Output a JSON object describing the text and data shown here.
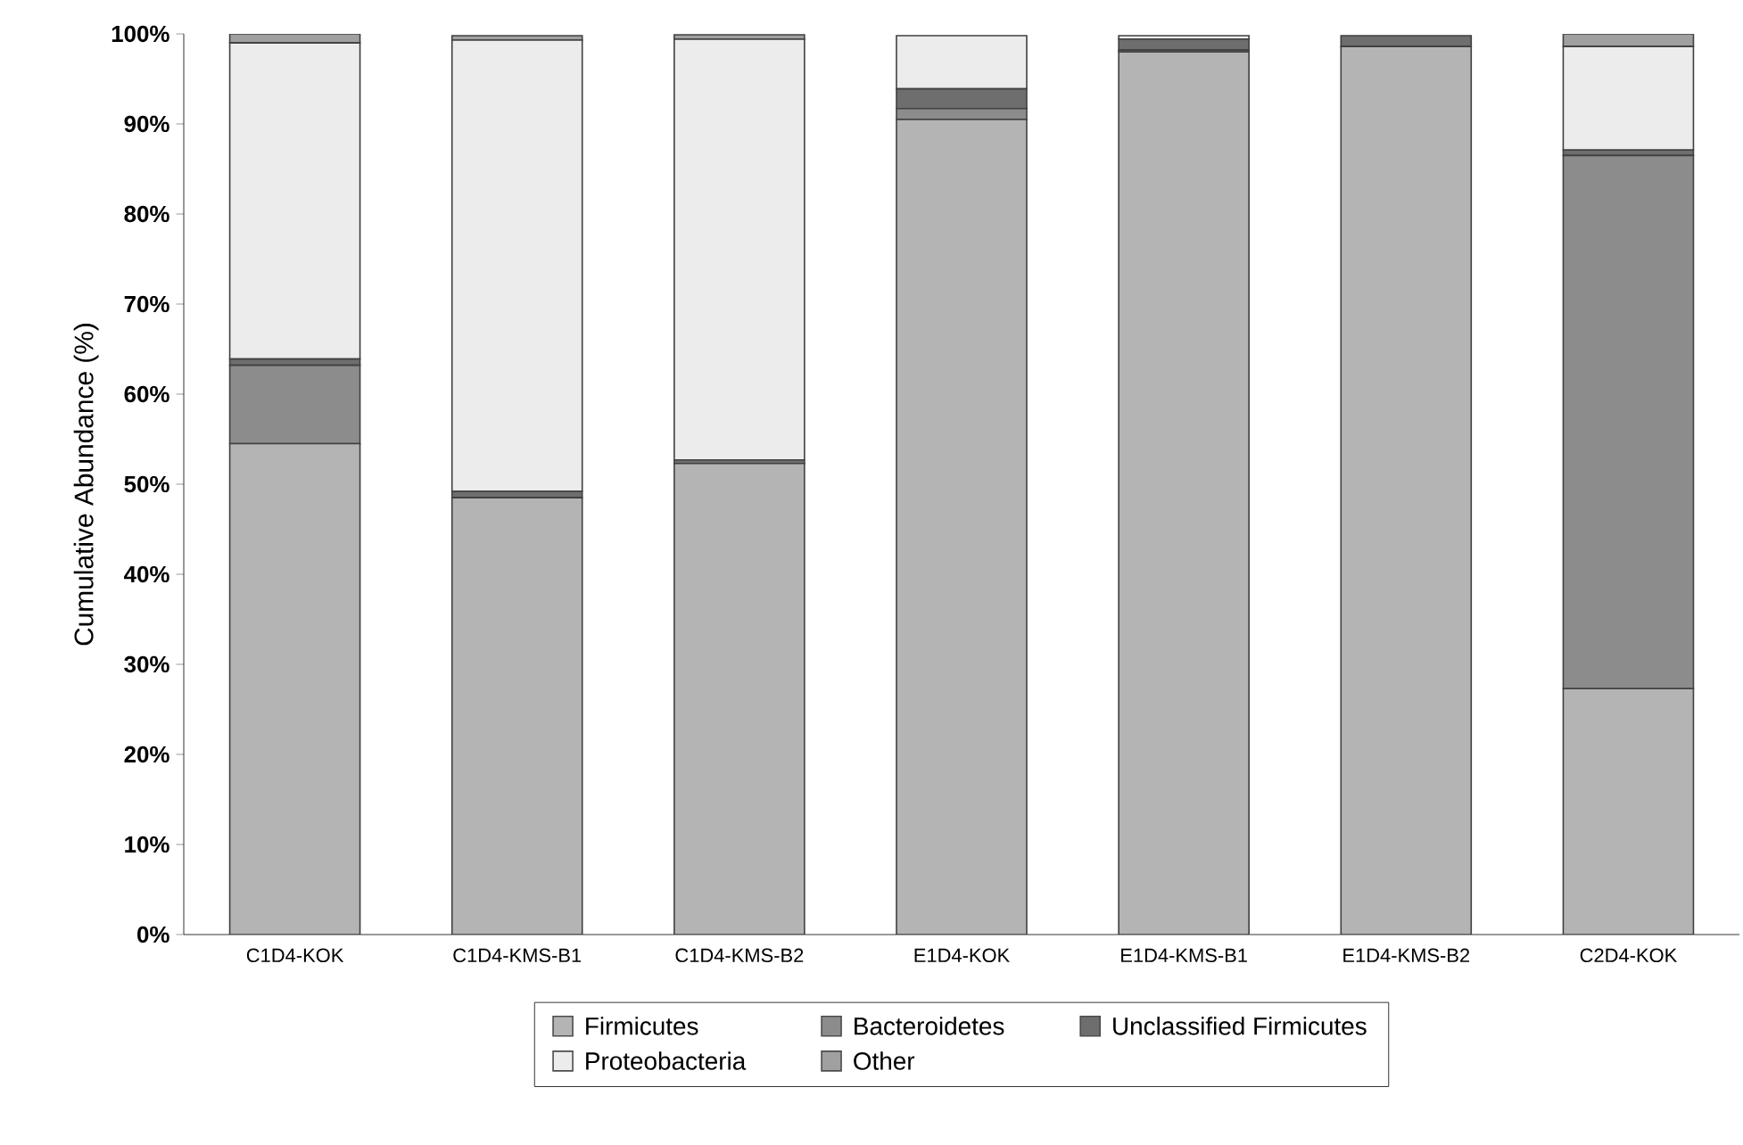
{
  "chart_data": {
    "type": "bar",
    "stacked": true,
    "ylabel": "Cumulative Abundance (%)",
    "categories": [
      "C1D4-KOK",
      "C1D4-KMS-B1",
      "C1D4-KMS-B2",
      "E1D4-KOK",
      "E1D4-KMS-B1",
      "E1D4-KMS-B2",
      "C2D4-KOK"
    ],
    "series": [
      {
        "name": "Firmicutes",
        "color": "#b4b4b4",
        "values": [
          54.5,
          48.5,
          52.3,
          90.5,
          98.0,
          98.6,
          27.3
        ]
      },
      {
        "name": "Bacteroidetes",
        "color": "#8c8c8c",
        "values": [
          8.7,
          null,
          null,
          1.2,
          0.2,
          0,
          59.2
        ]
      },
      {
        "name": "Unclassified Firmicutes",
        "color": "#6e6e6e",
        "values": [
          0.7,
          0.7,
          0.4,
          2.2,
          1.2,
          1.2,
          0.6
        ]
      },
      {
        "name": "Proteobacteria",
        "color": "#ececec",
        "values": [
          35.1,
          50.1,
          46.7,
          5.9,
          0.4,
          0,
          11.5
        ]
      },
      {
        "name": "Other",
        "color": "#a0a0a0",
        "values": [
          1.0,
          0.5,
          0.5,
          null,
          null,
          null,
          1.4
        ]
      }
    ],
    "ylim": [
      0,
      100
    ],
    "yticks": [
      {
        "value": 0,
        "label": "0%"
      },
      {
        "value": 10,
        "label": "10%"
      },
      {
        "value": 20,
        "label": "20%"
      },
      {
        "value": 30,
        "label": "30%"
      },
      {
        "value": 40,
        "label": "40%"
      },
      {
        "value": 50,
        "label": "50%"
      },
      {
        "value": 60,
        "label": "60%"
      },
      {
        "value": 70,
        "label": "70%"
      },
      {
        "value": 80,
        "label": "80%"
      },
      {
        "value": 90,
        "label": "90%"
      },
      {
        "value": 100,
        "label": "100%"
      }
    ],
    "grid": false,
    "legend": "bottom"
  }
}
